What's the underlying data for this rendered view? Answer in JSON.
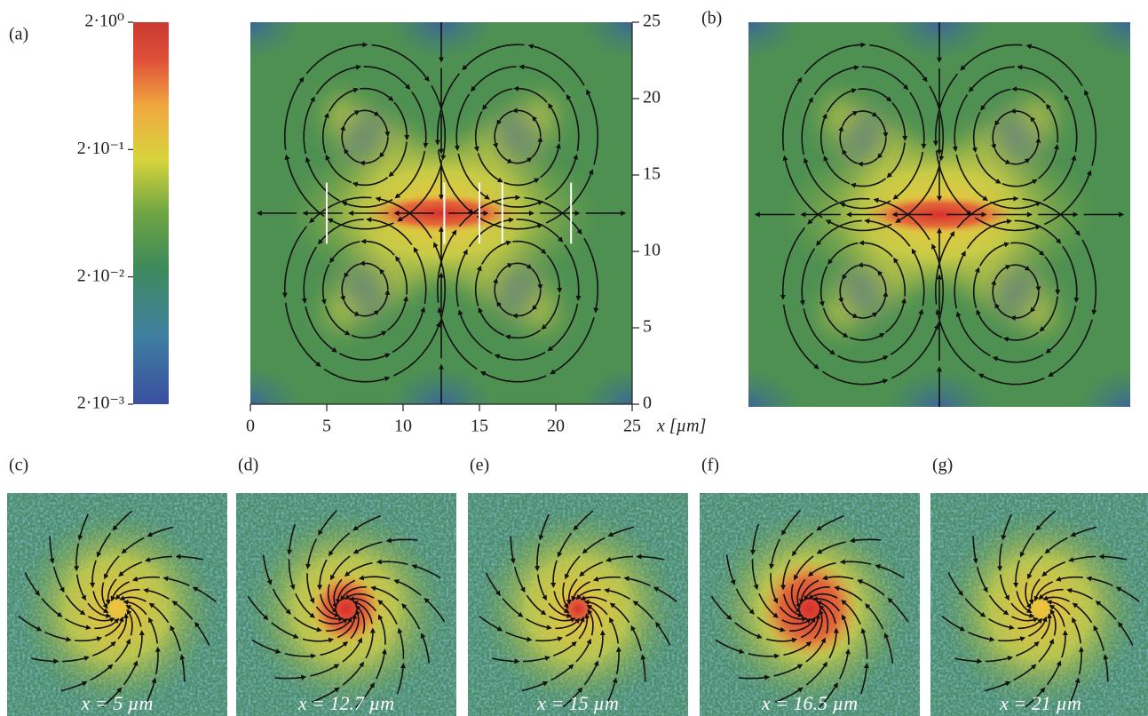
{
  "figure": {
    "colorbar": {
      "log": true,
      "lim": [
        0.002,
        2
      ],
      "ticks": [
        {
          "value": 2,
          "label": "2·10⁰"
        },
        {
          "value": 0.2,
          "label": "2·10⁻¹"
        },
        {
          "value": 0.02,
          "label": "2·10⁻²"
        },
        {
          "value": 0.002,
          "label": "2·10⁻³"
        }
      ]
    },
    "panels": [
      {
        "label": "(a)"
      },
      {
        "label": "(b)"
      }
    ],
    "xaxis": {
      "label": "x [µm]",
      "lim": [
        0,
        25
      ],
      "ticks": [
        0,
        5,
        10,
        15,
        20,
        25
      ]
    },
    "yaxis": {
      "lim": [
        0,
        25
      ],
      "ticks": [
        0,
        5,
        10,
        15,
        20,
        25
      ]
    },
    "slices": [
      {
        "label": "(c)",
        "x": 5,
        "caption": "x = 5 µm"
      },
      {
        "label": "(d)",
        "x": 12.7,
        "caption": "x = 12.7 µm"
      },
      {
        "label": "(e)",
        "x": 15,
        "caption": "x = 15 µm"
      },
      {
        "label": "(f)",
        "x": 16.5,
        "caption": "x = 16.5 µm"
      },
      {
        "label": "(g)",
        "x": 21,
        "caption": "x = 21 µm"
      }
    ]
  }
}
